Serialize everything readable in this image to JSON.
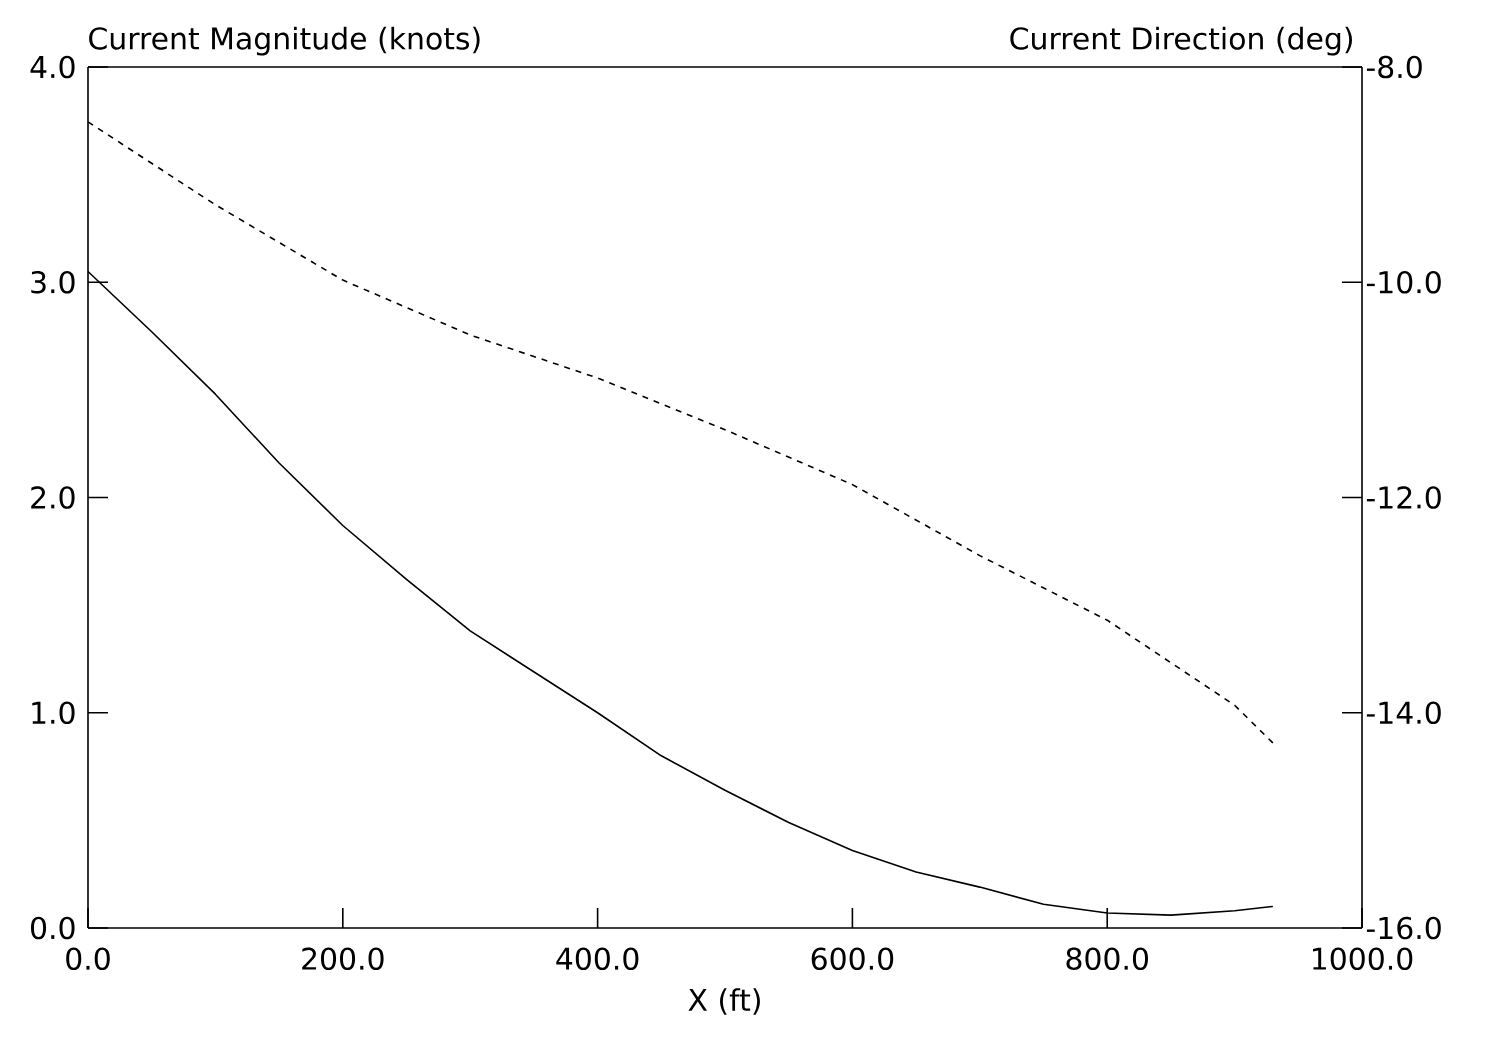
{
  "chart_data": {
    "type": "line",
    "xlabel": "X  (ft)",
    "ylabel": "Current Magnitude (knots)",
    "y2label": "Current Direction (deg)",
    "xlim": [
      0,
      1000
    ],
    "ylim": [
      0,
      4
    ],
    "y2lim": [
      -16,
      -8
    ],
    "xticks": [
      {
        "value": 0,
        "label": "0.0"
      },
      {
        "value": 200,
        "label": "200.0"
      },
      {
        "value": 400,
        "label": "400.0"
      },
      {
        "value": 600,
        "label": "600.0"
      },
      {
        "value": 800,
        "label": "800.0"
      },
      {
        "value": 1000,
        "label": "1000.0"
      }
    ],
    "yticks": [
      {
        "value": 0,
        "label": "0.0"
      },
      {
        "value": 1,
        "label": "1.0"
      },
      {
        "value": 2,
        "label": "2.0"
      },
      {
        "value": 3,
        "label": "3.0"
      },
      {
        "value": 4,
        "label": "4.0"
      }
    ],
    "y2ticks": [
      {
        "value": -16,
        "label": "-16.0"
      },
      {
        "value": -14,
        "label": "-14.0"
      },
      {
        "value": -12,
        "label": "-12.0"
      },
      {
        "value": -10,
        "label": "-10.0"
      },
      {
        "value": -8,
        "label": "-8.0"
      }
    ],
    "series": [
      {
        "color": "#000000",
        "line_style": "solid",
        "axis": "y",
        "x": [
          0,
          50,
          100,
          150,
          200,
          250,
          300,
          400,
          450,
          500,
          550,
          600,
          650,
          700,
          750,
          800,
          850,
          900,
          930
        ],
        "values": [
          3.05,
          2.77,
          2.48,
          2.16,
          1.87,
          1.62,
          1.38,
          1.0,
          0.8,
          0.64,
          0.49,
          0.36,
          0.26,
          0.19,
          0.11,
          0.07,
          0.06,
          0.08,
          0.1
        ]
      },
      {
        "color": "#000000",
        "line_style": "dashed",
        "axis": "y2",
        "x": [
          0,
          100,
          200,
          300,
          400,
          500,
          600,
          700,
          800,
          900,
          930
        ],
        "values": [
          -8.51,
          -9.28,
          -9.98,
          -10.49,
          -10.89,
          -11.37,
          -11.88,
          -12.54,
          -13.14,
          -13.93,
          -14.28
        ]
      }
    ]
  }
}
